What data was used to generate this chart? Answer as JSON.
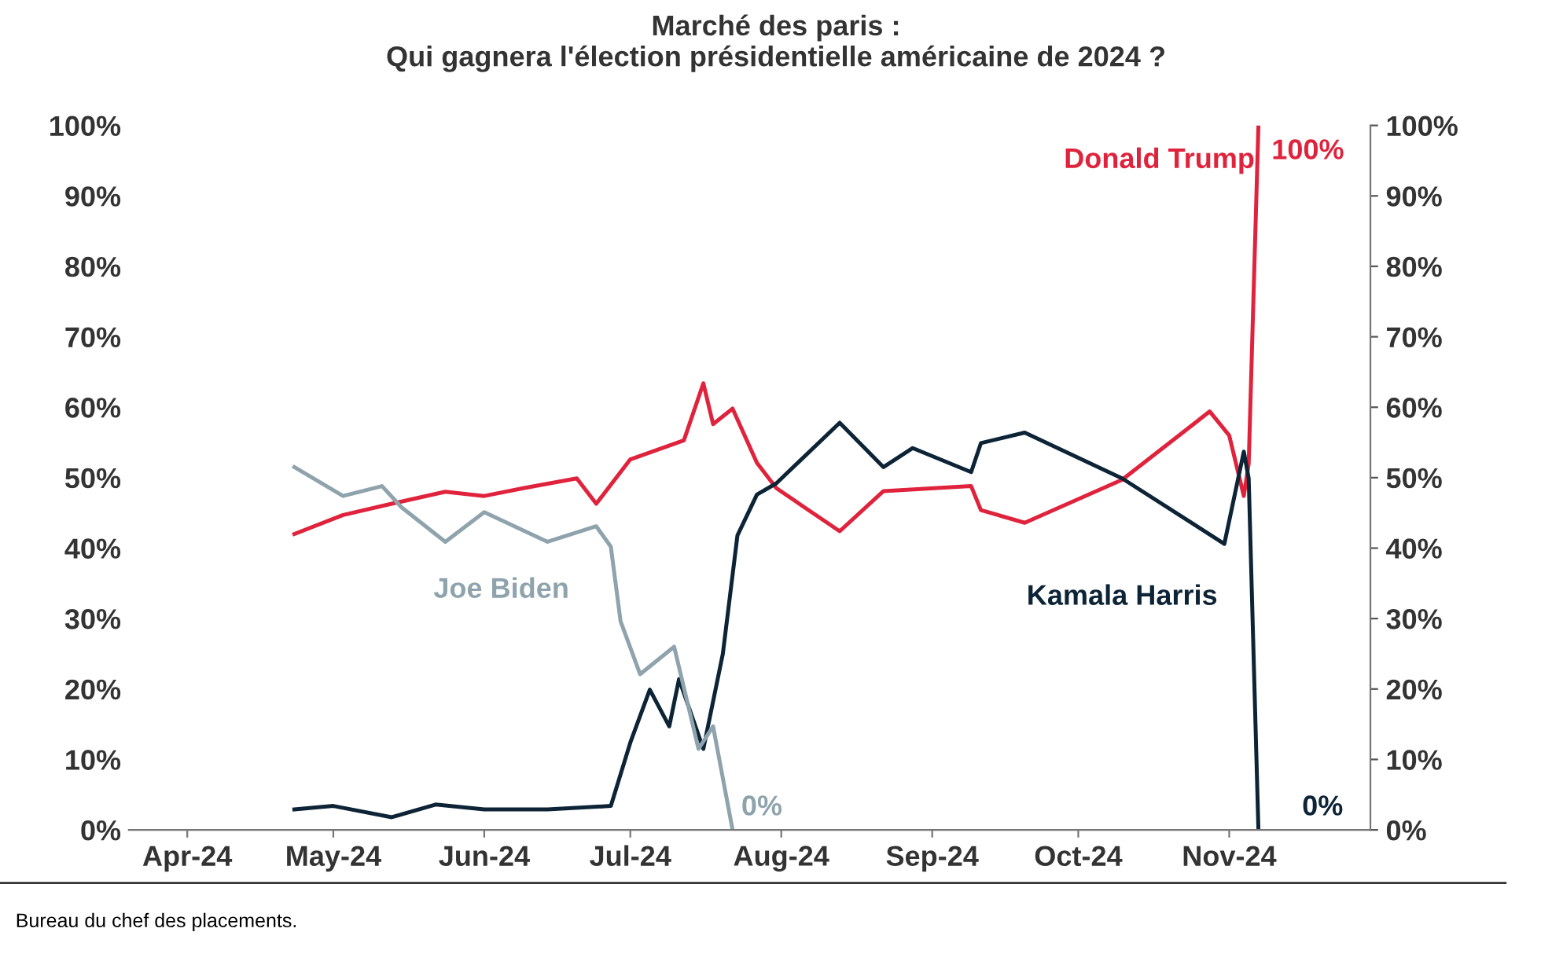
{
  "chart_data": {
    "type": "line",
    "title": "Marché des paris :\nQui gagnera l'élection présidentielle américaine de 2024 ?",
    "annotations": [
      "Bureau du chef des placements."
    ],
    "series": [
      {
        "name": "Donald Trump",
        "color": "#e0233c",
        "x": [
          "2024-04-23",
          "2024-05-03",
          "2024-05-13",
          "2024-05-24",
          "2024-06-01",
          "2024-06-09",
          "2024-06-20",
          "2024-06-24",
          "2024-07-01",
          "2024-07-12",
          "2024-07-16",
          "2024-07-18",
          "2024-07-22",
          "2024-07-27",
          "2024-07-31",
          "2024-08-13",
          "2024-08-22",
          "2024-09-09",
          "2024-09-11",
          "2024-09-20",
          "2024-10-10",
          "2024-10-28",
          "2024-11-01",
          "2024-11-04",
          "2024-11-05",
          "2024-11-07"
        ],
        "values": [
          42,
          44.7,
          46.3,
          48,
          47.4,
          48.5,
          49.9,
          46.3,
          52.6,
          55.3,
          63.4,
          57.6,
          59.8,
          52.1,
          48.5,
          42.4,
          48.1,
          48.8,
          45.4,
          43.6,
          49.7,
          59.4,
          56,
          47.4,
          52,
          100
        ],
        "value_labels": [
          null,
          null,
          null,
          null,
          null,
          null,
          null,
          null,
          null,
          null,
          null,
          null,
          null,
          null,
          null,
          null,
          null,
          null,
          null,
          null,
          null,
          null,
          null,
          null,
          null,
          "100%"
        ]
      },
      {
        "name": "Kamala Harris",
        "color": "#0d2436",
        "x": [
          "2024-04-23",
          "2024-05-01",
          "2024-05-13",
          "2024-05-22",
          "2024-06-01",
          "2024-06-14",
          "2024-06-27",
          "2024-07-01",
          "2024-07-05",
          "2024-07-09",
          "2024-07-11",
          "2024-07-16",
          "2024-07-20",
          "2024-07-23",
          "2024-07-27",
          "2024-07-31",
          "2024-08-13",
          "2024-08-22",
          "2024-08-28",
          "2024-09-09",
          "2024-09-11",
          "2024-09-20",
          "2024-10-10",
          "2024-10-31",
          "2024-11-04",
          "2024-11-05",
          "2024-11-07"
        ],
        "values": [
          2.9,
          3.4,
          1.8,
          3.6,
          2.9,
          2.9,
          3.4,
          12.4,
          19.9,
          14.7,
          21.4,
          11.5,
          25,
          41.8,
          47.6,
          49.2,
          57.8,
          51.5,
          54.2,
          50.8,
          54.9,
          56.4,
          49.9,
          40.6,
          53.7,
          49.9,
          0
        ],
        "value_labels": [
          null,
          null,
          null,
          null,
          null,
          null,
          null,
          null,
          null,
          null,
          null,
          null,
          null,
          null,
          null,
          null,
          null,
          null,
          null,
          null,
          null,
          null,
          null,
          null,
          null,
          null,
          "0%"
        ]
      },
      {
        "name": "Joe Biden",
        "color": "#8fa3ad",
        "x": [
          "2024-04-23",
          "2024-05-03",
          "2024-05-11",
          "2024-05-15",
          "2024-05-24",
          "2024-06-01",
          "2024-06-14",
          "2024-06-24",
          "2024-06-27",
          "2024-06-29",
          "2024-07-03",
          "2024-07-10",
          "2024-07-15",
          "2024-07-18",
          "2024-07-22"
        ],
        "values": [
          51.5,
          47.4,
          48.8,
          45.8,
          40.9,
          45.1,
          40.9,
          43.1,
          40.2,
          29.6,
          22.1,
          26,
          11.5,
          14.7,
          0
        ],
        "value_labels": [
          null,
          null,
          null,
          null,
          null,
          null,
          null,
          null,
          null,
          null,
          null,
          null,
          null,
          null,
          "0%"
        ]
      }
    ],
    "xlim": [
      "2024-03-20",
      "2024-11-30"
    ],
    "xticks": [
      {
        "value": "2024-04-01",
        "label": "Apr-24"
      },
      {
        "value": "2024-05-01",
        "label": "May-24"
      },
      {
        "value": "2024-06-01",
        "label": "Jun-24"
      },
      {
        "value": "2024-07-01",
        "label": "Jul-24"
      },
      {
        "value": "2024-08-01",
        "label": "Aug-24"
      },
      {
        "value": "2024-09-01",
        "label": "Sep-24"
      },
      {
        "value": "2024-10-01",
        "label": "Oct-24"
      },
      {
        "value": "2024-11-01",
        "label": "Nov-24"
      }
    ],
    "ylim": [
      0,
      100
    ],
    "yticks": [
      {
        "value": 0,
        "label": "0%"
      },
      {
        "value": 10,
        "label": "10%"
      },
      {
        "value": 20,
        "label": "20%"
      },
      {
        "value": 30,
        "label": "30%"
      },
      {
        "value": 40,
        "label": "40%"
      },
      {
        "value": 50,
        "label": "50%"
      },
      {
        "value": 60,
        "label": "60%"
      },
      {
        "value": 70,
        "label": "70%"
      },
      {
        "value": 80,
        "label": "80%"
      },
      {
        "value": 90,
        "label": "90%"
      },
      {
        "value": 100,
        "label": "100%"
      }
    ],
    "y2lim": [
      0,
      100
    ],
    "y2ticks": [
      {
        "value": 0,
        "label": "0%"
      },
      {
        "value": 10,
        "label": "10%"
      },
      {
        "value": 20,
        "label": "20%"
      },
      {
        "value": 30,
        "label": "30%"
      },
      {
        "value": 40,
        "label": "40%"
      },
      {
        "value": 50,
        "label": "50%"
      },
      {
        "value": 60,
        "label": "60%"
      },
      {
        "value": 70,
        "label": "70%"
      },
      {
        "value": 80,
        "label": "80%"
      },
      {
        "value": 90,
        "label": "90%"
      },
      {
        "value": 100,
        "label": "100%"
      }
    ],
    "grid": false,
    "legend": false
  }
}
